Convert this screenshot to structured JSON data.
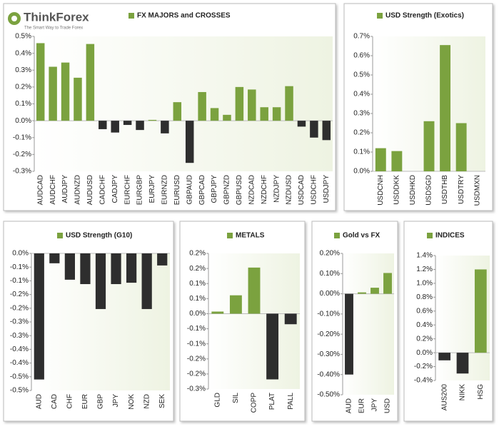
{
  "logo": {
    "name": "ThinkForex",
    "tagline": "The Smart Way to Trade Forex"
  },
  "chart_data": [
    {
      "type": "bar",
      "categories": [
        "AUDCAD",
        "AUDCHF",
        "AUDJPY",
        "AUDNZD",
        "AUDUSD",
        "CADCHF",
        "CADJPY",
        "EURCHF",
        "EURGBP",
        "EURJPY",
        "EURNZD",
        "EURUSD",
        "GBPAUD",
        "GBPCAD",
        "GBPJPY",
        "GBPNZD",
        "GBPUSD",
        "NZDCAD",
        "NZDCHF",
        "NZDJPY",
        "NZDUSD",
        "USDCAD",
        "USDCHF",
        "USDJPY"
      ],
      "series": [
        {
          "name": "FX MAJORS and CROSSES",
          "color": "#7ba23f",
          "negative_color": "#2e2e2e",
          "values": [
            0.46,
            0.32,
            0.345,
            0.255,
            0.455,
            -0.05,
            -0.07,
            -0.025,
            -0.055,
            0.005,
            -0.075,
            0.11,
            -0.25,
            0.17,
            0.075,
            0.035,
            0.2,
            0.185,
            0.08,
            0.08,
            0.205,
            -0.035,
            -0.1,
            -0.115
          ]
        }
      ],
      "ylim": [
        -0.3,
        0.5
      ],
      "yticks": [
        {
          "value": -0.3,
          "label": "-0.3%"
        },
        {
          "value": -0.2,
          "label": "-0.2%"
        },
        {
          "value": -0.1,
          "label": "-0.1%"
        },
        {
          "value": 0,
          "label": "0.0%"
        },
        {
          "value": 0.1,
          "label": "0.1%"
        },
        {
          "value": 0.2,
          "label": "0.2%"
        },
        {
          "value": 0.3,
          "label": "0.3%"
        },
        {
          "value": 0.4,
          "label": "0.4%"
        },
        {
          "value": 0.5,
          "label": "0.5%"
        }
      ]
    },
    {
      "type": "bar",
      "categories": [
        "USDCNH",
        "USDDKK",
        "USDHKD",
        "USDSGD",
        "USDTHB",
        "USDTRY",
        "USDMXN"
      ],
      "series": [
        {
          "name": "USD Strength (Exotics)",
          "color": "#7ba23f",
          "negative_color": "#2e2e2e",
          "values": [
            0.12,
            0.105,
            0,
            0.26,
            0.655,
            0.25,
            0
          ]
        }
      ],
      "ylim": [
        0,
        0.7
      ],
      "yticks": [
        {
          "value": 0,
          "label": "0.0%"
        },
        {
          "value": 0.1,
          "label": "0.1%"
        },
        {
          "value": 0.2,
          "label": "0.2%"
        },
        {
          "value": 0.3,
          "label": "0.3%"
        },
        {
          "value": 0.4,
          "label": "0.4%"
        },
        {
          "value": 0.5,
          "label": "0.5%"
        },
        {
          "value": 0.6,
          "label": "0.6%"
        },
        {
          "value": 0.7,
          "label": "0.7%"
        }
      ]
    },
    {
      "type": "bar",
      "categories": [
        "AUD",
        "CAD",
        "CHF",
        "EUR",
        "GBP",
        "JPY",
        "NOK",
        "NZD",
        "SEK"
      ],
      "series": [
        {
          "name": "USD Strength (G10)",
          "color": "#7ba23f",
          "negative_color": "#2e2e2e",
          "values": [
            -0.46,
            -0.036,
            -0.096,
            -0.112,
            -0.203,
            -0.112,
            -0.107,
            -0.203,
            -0.044
          ]
        }
      ],
      "ylim": [
        -0.5,
        0
      ],
      "yticks": [
        {
          "value": 0,
          "label": "0.0%"
        },
        {
          "value": -0.05,
          "label": "-0.1%"
        },
        {
          "value": -0.1,
          "label": "-0.1%"
        },
        {
          "value": -0.15,
          "label": "-0.2%"
        },
        {
          "value": -0.2,
          "label": "-0.2%"
        },
        {
          "value": -0.25,
          "label": "-0.3%"
        },
        {
          "value": -0.3,
          "label": "-0.3%"
        },
        {
          "value": -0.35,
          "label": "-0.4%"
        },
        {
          "value": -0.4,
          "label": "-0.4%"
        },
        {
          "value": -0.45,
          "label": "-0.5%"
        },
        {
          "value": -0.5,
          "label": "-0.5%"
        }
      ]
    },
    {
      "type": "bar",
      "categories": [
        "GLD",
        "SIL",
        "COPP",
        "PLAT",
        "PALL"
      ],
      "series": [
        {
          "name": "METALS",
          "color": "#7ba23f",
          "negative_color": "#2e2e2e",
          "values": [
            0.007,
            0.061,
            0.153,
            -0.218,
            -0.035
          ]
        }
      ],
      "ylim": [
        -0.25,
        0.2
      ],
      "yticks": [
        {
          "value": 0.2,
          "label": "0.2%"
        },
        {
          "value": 0.15,
          "label": "0.2%"
        },
        {
          "value": 0.1,
          "label": "0.1%"
        },
        {
          "value": 0.05,
          "label": "0.1%"
        },
        {
          "value": 0,
          "label": "0.0%"
        },
        {
          "value": -0.05,
          "label": "-0.1%"
        },
        {
          "value": -0.1,
          "label": "-0.1%"
        },
        {
          "value": -0.15,
          "label": "-0.2%"
        },
        {
          "value": -0.2,
          "label": "-0.2%"
        },
        {
          "value": -0.25,
          "label": "-0.3%"
        }
      ]
    },
    {
      "type": "bar",
      "categories": [
        "AUD",
        "EUR",
        "JPY",
        "USD"
      ],
      "series": [
        {
          "name": "Gold vs FX",
          "color": "#7ba23f",
          "negative_color": "#2e2e2e",
          "values": [
            -0.4,
            0.007,
            0.03,
            0.103
          ]
        }
      ],
      "ylim": [
        -0.5,
        0.2
      ],
      "yticks": [
        {
          "value": 0.2,
          "label": "0.20%"
        },
        {
          "value": 0.1,
          "label": "0.10%"
        },
        {
          "value": 0,
          "label": "0.00%"
        },
        {
          "value": -0.1,
          "label": "-0.10%"
        },
        {
          "value": -0.2,
          "label": "-0.20%"
        },
        {
          "value": -0.3,
          "label": "-0.30%"
        },
        {
          "value": -0.4,
          "label": "-0.40%"
        },
        {
          "value": -0.5,
          "label": "-0.50%"
        }
      ]
    },
    {
      "type": "bar",
      "categories": [
        "AUS200",
        "NIKK",
        "HSG"
      ],
      "series": [
        {
          "name": "INDICES",
          "color": "#7ba23f",
          "negative_color": "#2e2e2e",
          "values": [
            -0.11,
            -0.3,
            1.2
          ]
        }
      ],
      "ylim": [
        -0.4,
        1.4
      ],
      "yticks": [
        {
          "value": 1.4,
          "label": "1.4%"
        },
        {
          "value": 1.2,
          "label": "1.2%"
        },
        {
          "value": 1,
          "label": "1.0%"
        },
        {
          "value": 0.8,
          "label": "0.8%"
        },
        {
          "value": 0.6,
          "label": "0.6%"
        },
        {
          "value": 0.4,
          "label": "0.4%"
        },
        {
          "value": 0.2,
          "label": "0.2%"
        },
        {
          "value": 0,
          "label": "0.0%"
        },
        {
          "value": -0.2,
          "label": "-0.2%"
        },
        {
          "value": -0.4,
          "label": "-0.4%"
        }
      ]
    }
  ]
}
